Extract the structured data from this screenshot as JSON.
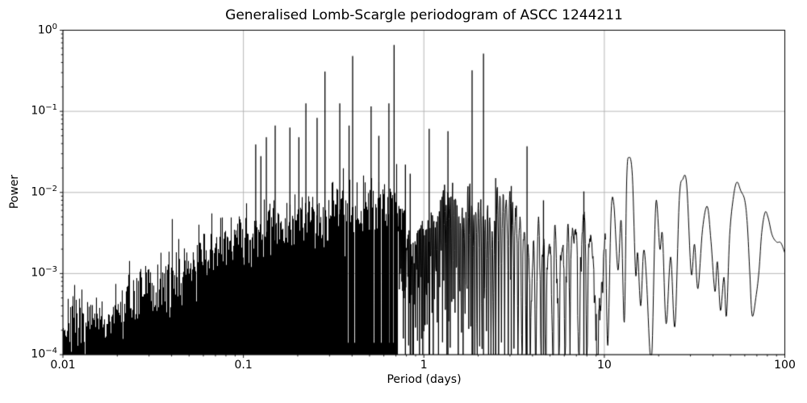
{
  "chart_data": {
    "type": "line",
    "title": "Generalised Lomb-Scargle periodogram of ASCC 1244211",
    "xlabel": "Period (days)",
    "ylabel": "Power",
    "xscale": "log",
    "yscale": "log",
    "xlim": [
      0.01,
      100
    ],
    "ylim": [
      0.0001,
      1
    ],
    "grid": true,
    "legend": "none",
    "line_color": "#000000",
    "grid_color": "#b0b0b0",
    "spine_color": "#000000",
    "background_color": "#ffffff",
    "xticks": [
      0.01,
      0.1,
      1,
      10,
      100
    ],
    "xtick_labels": [
      "0.01",
      "0.1",
      "1",
      "10",
      "100"
    ],
    "ytick_exponents": [
      0,
      -1,
      -2,
      -3,
      -4
    ],
    "peaks": [
      [
        0.117,
        0.039
      ],
      [
        0.125,
        0.028
      ],
      [
        0.134,
        0.048
      ],
      [
        0.15,
        0.067
      ],
      [
        0.181,
        0.063
      ],
      [
        0.203,
        0.048
      ],
      [
        0.222,
        0.125
      ],
      [
        0.256,
        0.083
      ],
      [
        0.283,
        0.31
      ],
      [
        0.342,
        0.125
      ],
      [
        0.385,
        0.067
      ],
      [
        0.403,
        0.48
      ],
      [
        0.51,
        0.115
      ],
      [
        0.563,
        0.05
      ],
      [
        0.64,
        0.125
      ],
      [
        0.684,
        0.66
      ],
      [
        0.79,
        0.022
      ],
      [
        0.84,
        0.017
      ],
      [
        1.07,
        0.061
      ],
      [
        1.36,
        0.057
      ],
      [
        1.85,
        0.32
      ],
      [
        2.14,
        0.515
      ],
      [
        2.5,
        0.015
      ],
      [
        3.05,
        0.012
      ],
      [
        3.73,
        0.037
      ],
      [
        4.6,
        0.008
      ],
      [
        7.7,
        0.0103
      ],
      [
        13.7,
        0.027
      ],
      [
        19.3,
        0.0074
      ],
      [
        27.2,
        0.0145
      ],
      [
        37.2,
        0.0067
      ],
      [
        54.3,
        0.0134
      ],
      [
        77.8,
        0.0057
      ]
    ],
    "noise_envelope": [
      [
        0.01,
        0.00026
      ],
      [
        0.015,
        0.00022
      ],
      [
        0.02,
        0.00035
      ],
      [
        0.03,
        0.0006
      ],
      [
        0.05,
        0.0012
      ],
      [
        0.07,
        0.002
      ],
      [
        0.1,
        0.003
      ],
      [
        0.15,
        0.004
      ],
      [
        0.25,
        0.0055
      ],
      [
        0.4,
        0.0065
      ],
      [
        0.7,
        0.0075
      ],
      [
        1.2,
        0.008
      ],
      [
        2,
        0.0075
      ],
      [
        3.5,
        0.006
      ],
      [
        6,
        0.005
      ],
      [
        10,
        0.0045
      ]
    ],
    "smooth_tail": [
      [
        10.2,
        0.002
      ],
      [
        10.45,
        0.00013
      ],
      [
        10.9,
        0.0055
      ],
      [
        11.3,
        0.007
      ],
      [
        11.9,
        0.0011
      ],
      [
        12.4,
        0.0045
      ],
      [
        12.9,
        0.00025
      ],
      [
        13.3,
        0.014
      ],
      [
        13.7,
        0.027
      ],
      [
        14.3,
        0.016
      ],
      [
        14.9,
        0.001
      ],
      [
        15.3,
        0.0018
      ],
      [
        15.9,
        0.0004
      ],
      [
        16.5,
        0.0019
      ],
      [
        17.1,
        0.0009
      ],
      [
        17.9,
        0.000105
      ],
      [
        18.4,
        0.00012
      ],
      [
        19.3,
        0.0074
      ],
      [
        20.3,
        0.002
      ],
      [
        21.0,
        0.003
      ],
      [
        22.0,
        0.00024
      ],
      [
        23.3,
        0.0016
      ],
      [
        24.6,
        0.00022
      ],
      [
        26.0,
        0.008
      ],
      [
        27.2,
        0.0145
      ],
      [
        28.6,
        0.0125
      ],
      [
        30.3,
        0.001
      ],
      [
        31.6,
        0.0023
      ],
      [
        33.0,
        0.00065
      ],
      [
        35.0,
        0.0035
      ],
      [
        37.2,
        0.0067
      ],
      [
        39.0,
        0.0025
      ],
      [
        41.0,
        0.0006
      ],
      [
        42.3,
        0.0014
      ],
      [
        44.0,
        0.00035
      ],
      [
        46.0,
        0.0009
      ],
      [
        47.5,
        0.0003
      ],
      [
        49.5,
        0.003
      ],
      [
        52.0,
        0.009
      ],
      [
        54.3,
        0.0134
      ],
      [
        57.0,
        0.0105
      ],
      [
        60.0,
        0.008
      ],
      [
        62.0,
        0.004
      ],
      [
        64.0,
        0.001
      ],
      [
        66.0,
        0.0003
      ],
      [
        69.5,
        0.00055
      ],
      [
        72.0,
        0.0011
      ],
      [
        74.5,
        0.0032
      ],
      [
        77.8,
        0.0057
      ],
      [
        81.0,
        0.0048
      ],
      [
        85.0,
        0.003
      ],
      [
        90.0,
        0.00245
      ],
      [
        95.0,
        0.0024
      ],
      [
        100,
        0.0018
      ]
    ],
    "render": {
      "seed": 7,
      "dense_max_period": 0.72,
      "tail_min_period": 10.2,
      "null_spacing_per_day": 70
    }
  }
}
